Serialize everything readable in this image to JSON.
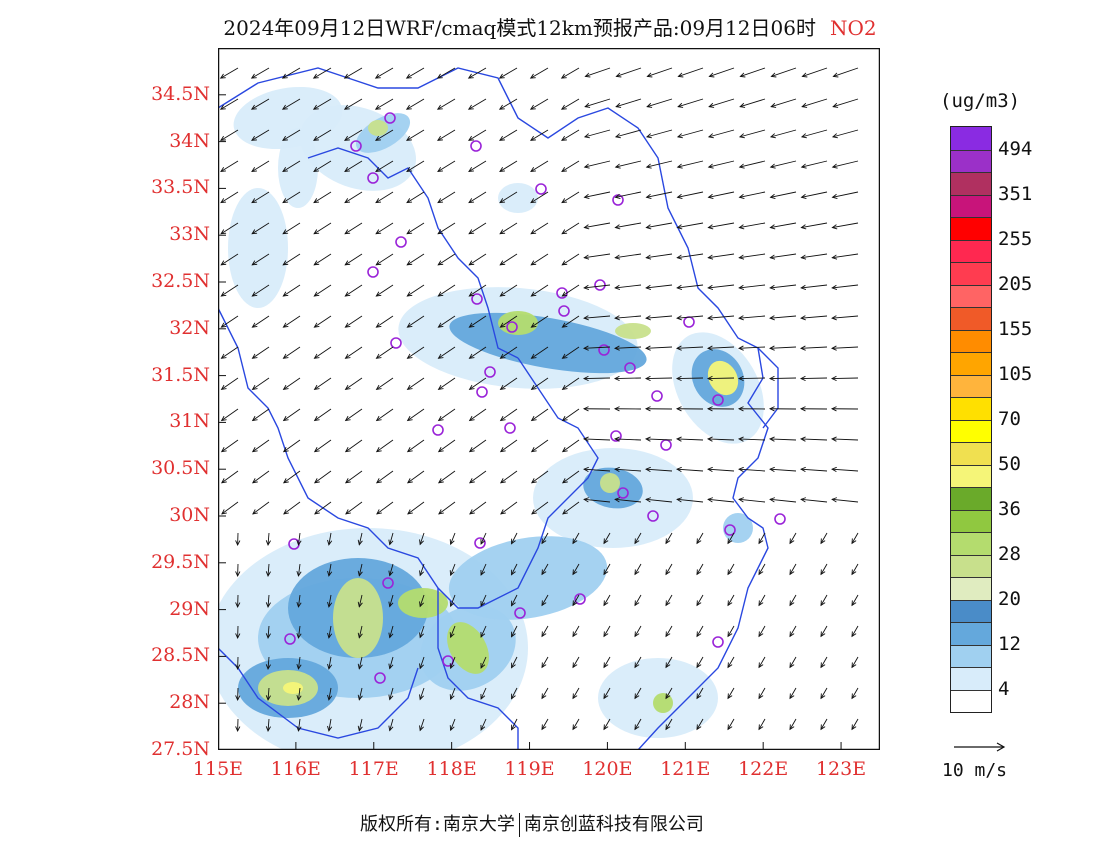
{
  "title": {
    "text": "2024年09月12日WRF/cmaq模式12km预报产品:09月12日06时",
    "pollutant": "NO2"
  },
  "map": {
    "lon_labels": [
      "115E",
      "116E",
      "117E",
      "118E",
      "119E",
      "120E",
      "121E",
      "122E",
      "123E"
    ],
    "lat_labels": [
      "34.5N",
      "34N",
      "33.5N",
      "33N",
      "32.5N",
      "32N",
      "31.5N",
      "31N",
      "30.5N",
      "30N",
      "29.5N",
      "29N",
      "28.5N",
      "28N",
      "27.5N"
    ],
    "lon_range": [
      115,
      123.5
    ],
    "lat_range": [
      27.5,
      35
    ]
  },
  "colorbar": {
    "unit": "(ug/m3)",
    "labels": [
      "494",
      "351",
      "255",
      "205",
      "155",
      "105",
      "70",
      "50",
      "36",
      "28",
      "20",
      "12",
      "4"
    ],
    "colors": [
      "#8a2be2",
      "#9b30c8",
      "#b03060",
      "#c8147a",
      "#ff0000",
      "#ff2850",
      "#ff3c50",
      "#ff6464",
      "#f05a28",
      "#ff8c00",
      "#ffa500",
      "#ffb43c",
      "#ffe000",
      "#ffff00",
      "#f0e050",
      "#f5f578",
      "#6aaa2a",
      "#90c840",
      "#b4dc6e",
      "#c8e08c",
      "#e0ecc0",
      "#4a8cc8",
      "#64a8dc",
      "#a0d0f0",
      "#d8ecfa",
      "#ffffff"
    ]
  },
  "wind_reference": {
    "label": "10 m/s"
  },
  "footer": {
    "left": "版权所有:南京大学",
    "right": "南京创蓝科技有限公司"
  }
}
